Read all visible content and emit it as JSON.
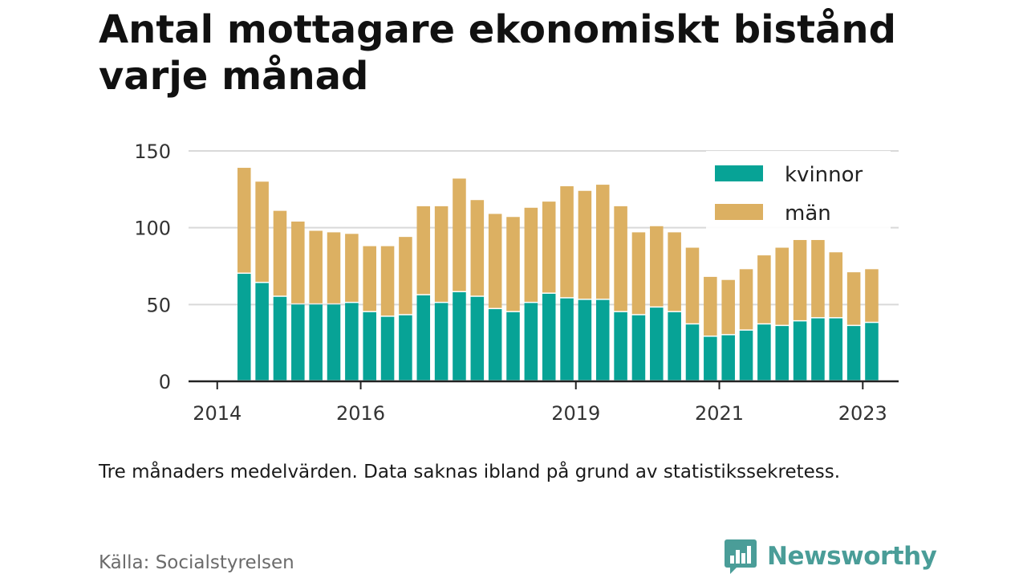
{
  "chart_data": {
    "type": "bar",
    "stacked": true,
    "title": "Antal mottagare ekonomiskt bistånd varje månad",
    "xlabel": "",
    "ylabel": "",
    "ylim": [
      0,
      150
    ],
    "yticks": [
      0,
      50,
      100,
      150
    ],
    "x_ticks": [
      2014,
      2016,
      2019,
      2021,
      2023
    ],
    "xlim": [
      2013.6,
      2023.5
    ],
    "grid": true,
    "legend_position": "top-right",
    "x": [
      2014.375,
      2014.625,
      2014.875,
      2015.125,
      2015.375,
      2015.625,
      2015.875,
      2016.125,
      2016.375,
      2016.625,
      2016.875,
      2017.125,
      2017.375,
      2017.625,
      2017.875,
      2018.125,
      2018.375,
      2018.625,
      2018.875,
      2019.125,
      2019.375,
      2019.625,
      2019.875,
      2020.125,
      2020.375,
      2020.625,
      2020.875,
      2021.125,
      2021.375,
      2021.625,
      2021.875,
      2022.125,
      2022.375,
      2022.625,
      2022.875,
      2023.125
    ],
    "series": [
      {
        "name": "kvinnor",
        "color": "#07a396",
        "values": [
          70,
          64,
          55,
          50,
          50,
          50,
          51,
          45,
          42,
          43,
          56,
          51,
          58,
          55,
          47,
          45,
          51,
          57,
          54,
          53,
          53,
          45,
          43,
          48,
          45,
          37,
          29,
          30,
          33,
          37,
          36,
          39,
          41,
          41,
          36,
          38
        ]
      },
      {
        "name": "män",
        "color": "#dcb062",
        "values": [
          69,
          66,
          56,
          54,
          48,
          47,
          45,
          43,
          46,
          51,
          58,
          63,
          74,
          63,
          62,
          62,
          62,
          60,
          73,
          71,
          75,
          69,
          54,
          53,
          52,
          50,
          39,
          36,
          40,
          45,
          51,
          53,
          51,
          43,
          35,
          35
        ]
      }
    ]
  },
  "note": "Tre månaders medelvärden. Data saknas ibland på grund av statistikssekretess.",
  "source": "Källa: Socialstyrelsen",
  "brand": {
    "name": "Newsworthy",
    "icon": "bar-chart-speech-icon",
    "color": "#4a9d98"
  }
}
